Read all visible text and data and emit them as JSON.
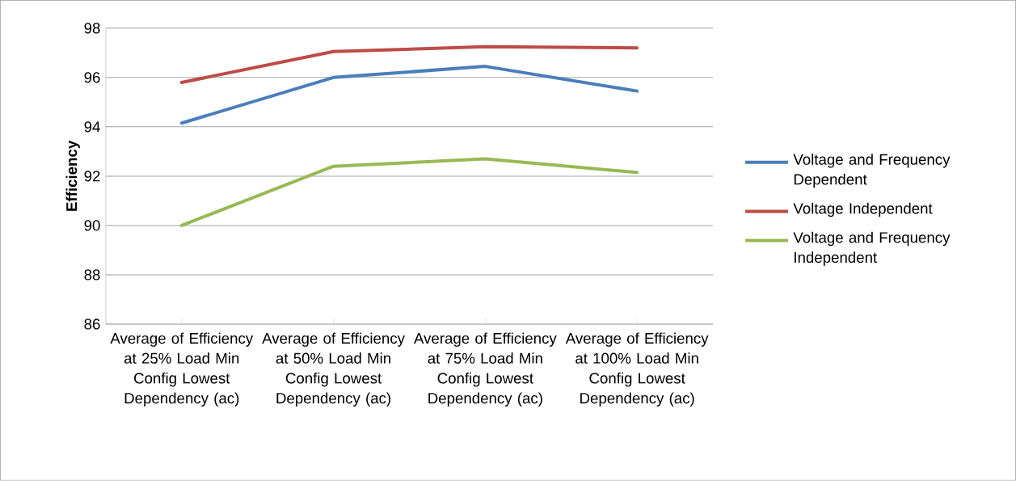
{
  "chart_data": {
    "type": "line",
    "ylabel": "Efficiency",
    "categories": [
      "Average of Efficiency at 25% Load Min Config Lowest Dependency (ac)",
      "Average of Efficiency at 50% Load Min Config Lowest Dependency (ac)",
      "Average of Efficiency at 75% Load Min Config Lowest Dependency (ac)",
      "Average of Efficiency at 100% Load Min Config Lowest Dependency (ac)"
    ],
    "series": [
      {
        "name": "Voltage and Frequency Dependent",
        "color": "#4a7ebb",
        "values": [
          94.15,
          96.0,
          96.45,
          95.45
        ]
      },
      {
        "name": "Voltage Independent",
        "color": "#be4b48",
        "values": [
          95.8,
          97.05,
          97.25,
          97.2
        ]
      },
      {
        "name": "Voltage and Frequency Independent",
        "color": "#98b954",
        "values": [
          90.0,
          92.4,
          92.7,
          92.15
        ]
      }
    ],
    "ylim": [
      86,
      98
    ],
    "yticks": [
      86,
      88,
      90,
      92,
      94,
      96,
      98
    ],
    "grid": "y",
    "legend": "right",
    "marker": "none",
    "line_style": "solid"
  }
}
